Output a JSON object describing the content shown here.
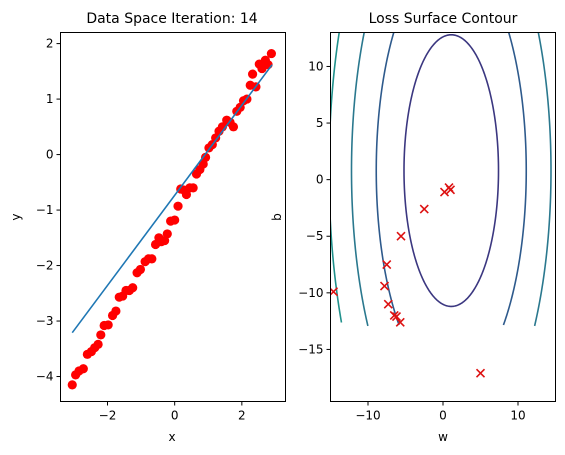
{
  "chart_data": [
    {
      "type": "scatter",
      "title": "Data Space Iteration: 14",
      "xlabel": "x",
      "ylabel": "y",
      "xlim": [
        -3.4,
        3.3
      ],
      "ylim": [
        -4.45,
        2.2
      ],
      "xticks": [
        -2,
        0,
        2
      ],
      "yticks": [
        -4,
        -3,
        -2,
        -1,
        0,
        1,
        2
      ],
      "series": [
        {
          "kind": "points",
          "color": "#ff0000",
          "points": [
            [
              -3.05,
              -4.15
            ],
            [
              -2.95,
              -3.97
            ],
            [
              -2.85,
              -3.9
            ],
            [
              -2.72,
              -3.86
            ],
            [
              -2.6,
              -3.6
            ],
            [
              -2.48,
              -3.55
            ],
            [
              -2.38,
              -3.48
            ],
            [
              -2.28,
              -3.42
            ],
            [
              -2.2,
              -3.25
            ],
            [
              -2.1,
              -3.08
            ],
            [
              -1.98,
              -3.07
            ],
            [
              -1.85,
              -2.9
            ],
            [
              -1.75,
              -2.82
            ],
            [
              -1.65,
              -2.57
            ],
            [
              -1.55,
              -2.55
            ],
            [
              -1.45,
              -2.45
            ],
            [
              -1.35,
              -2.45
            ],
            [
              -1.25,
              -2.4
            ],
            [
              -1.12,
              -2.13
            ],
            [
              -1.02,
              -2.07
            ],
            [
              -0.88,
              -1.93
            ],
            [
              -0.78,
              -1.88
            ],
            [
              -0.68,
              -1.88
            ],
            [
              -0.57,
              -1.62
            ],
            [
              -0.47,
              -1.5
            ],
            [
              -0.4,
              -1.57
            ],
            [
              -0.3,
              -1.55
            ],
            [
              -0.22,
              -1.43
            ],
            [
              -0.12,
              -1.2
            ],
            [
              0.0,
              -1.18
            ],
            [
              0.1,
              -0.93
            ],
            [
              0.18,
              -0.62
            ],
            [
              0.28,
              -0.64
            ],
            [
              0.35,
              -0.72
            ],
            [
              0.45,
              -0.6
            ],
            [
              0.55,
              -0.6
            ],
            [
              0.65,
              -0.35
            ],
            [
              0.75,
              -0.27
            ],
            [
              0.85,
              -0.17
            ],
            [
              0.92,
              -0.05
            ],
            [
              1.02,
              0.12
            ],
            [
              1.12,
              0.18
            ],
            [
              1.22,
              0.3
            ],
            [
              1.32,
              0.42
            ],
            [
              1.42,
              0.5
            ],
            [
              1.55,
              0.62
            ],
            [
              1.65,
              0.58
            ],
            [
              1.75,
              0.5
            ],
            [
              1.85,
              0.78
            ],
            [
              1.95,
              0.85
            ],
            [
              2.05,
              0.97
            ],
            [
              2.15,
              1.0
            ],
            [
              2.25,
              1.25
            ],
            [
              2.32,
              1.45
            ],
            [
              2.42,
              1.22
            ],
            [
              2.52,
              1.63
            ],
            [
              2.6,
              1.55
            ],
            [
              2.7,
              1.7
            ],
            [
              2.78,
              1.62
            ],
            [
              2.88,
              1.82
            ]
          ]
        },
        {
          "kind": "line",
          "color": "#1f77b4",
          "line": [
            [
              -3.05,
              -3.21
            ],
            [
              2.9,
              1.62
            ]
          ]
        }
      ]
    },
    {
      "type": "contour",
      "title": "Loss Surface Contour",
      "xlabel": "w",
      "ylabel": "b",
      "xlim": [
        -15,
        15
      ],
      "ylim": [
        -19.6,
        13
      ],
      "xticks": [
        -10,
        0,
        10
      ],
      "yticks": [
        -15,
        -10,
        -5,
        0,
        5,
        10
      ],
      "contour_center": [
        1.1,
        0.8
      ],
      "contour_levels": [
        {
          "color": "#3b3780",
          "rx": 6.3,
          "ry": 12.0
        },
        {
          "color": "#2e5a8c",
          "rx": 10.0,
          "ry": 19.0
        },
        {
          "color": "#2a788e",
          "rx": 13.3,
          "ry": 25.0
        },
        {
          "color": "#21918c",
          "rx": 16.3,
          "ry": 30.5
        },
        {
          "color": "#27ad81",
          "rx": 18.6,
          "ry": 35.0
        },
        {
          "color": "#5ec962",
          "rx": 20.8,
          "ry": 39.5
        }
      ],
      "contour_clip_b": -13,
      "markers": {
        "symbol": "x",
        "color": "#dd1111",
        "points": [
          [
            -14.6,
            -9.9
          ],
          [
            -7.5,
            -7.5
          ],
          [
            -7.8,
            -9.4
          ],
          [
            -7.3,
            -11.0
          ],
          [
            -6.5,
            -12.0
          ],
          [
            -6.2,
            -12.1
          ],
          [
            -5.7,
            -12.6
          ],
          [
            -5.6,
            -5.0
          ],
          [
            -2.5,
            -2.6
          ],
          [
            0.2,
            -1.1
          ],
          [
            0.8,
            -0.7
          ],
          [
            1.0,
            -0.9
          ],
          [
            5.0,
            -17.1
          ]
        ]
      }
    }
  ]
}
